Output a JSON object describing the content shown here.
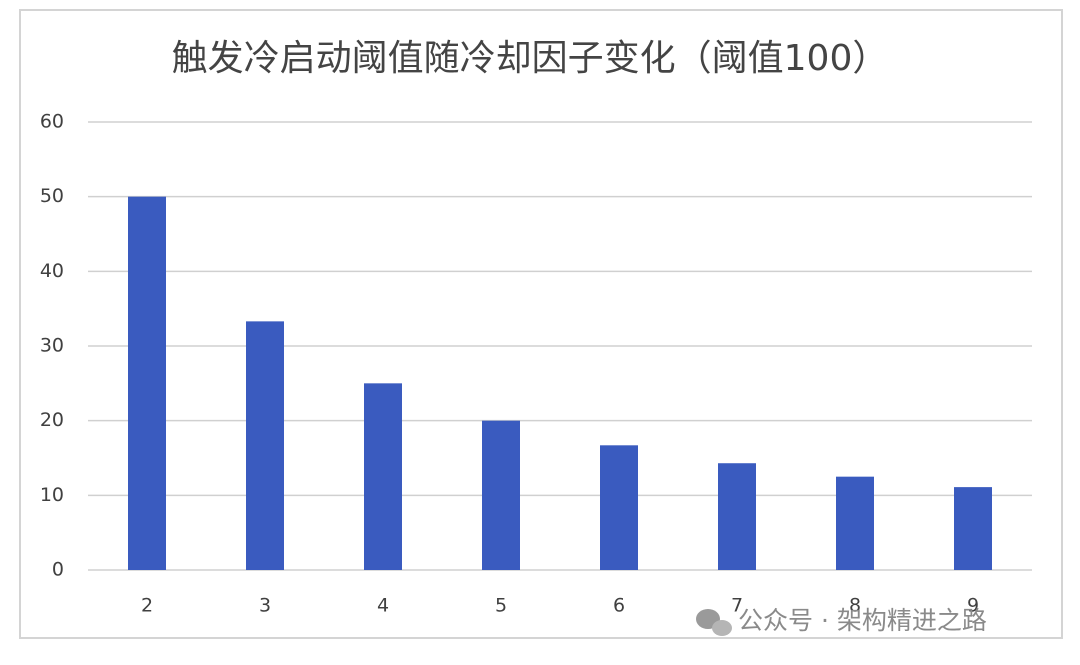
{
  "chart_data": {
    "type": "bar",
    "title": "触发冷启动阈值随冷却因子变化（阈值100）",
    "categories": [
      "2",
      "3",
      "4",
      "5",
      "6",
      "7",
      "8",
      "9"
    ],
    "values": [
      50,
      33.3,
      25,
      20,
      16.7,
      14.3,
      12.5,
      11.1
    ],
    "color": "#3a5bbf",
    "ylim": [
      0,
      60
    ],
    "yticks": [
      0,
      10,
      20,
      30,
      40,
      50,
      60
    ],
    "grid": true
  },
  "watermark": "公众号 · 架构精进之路"
}
